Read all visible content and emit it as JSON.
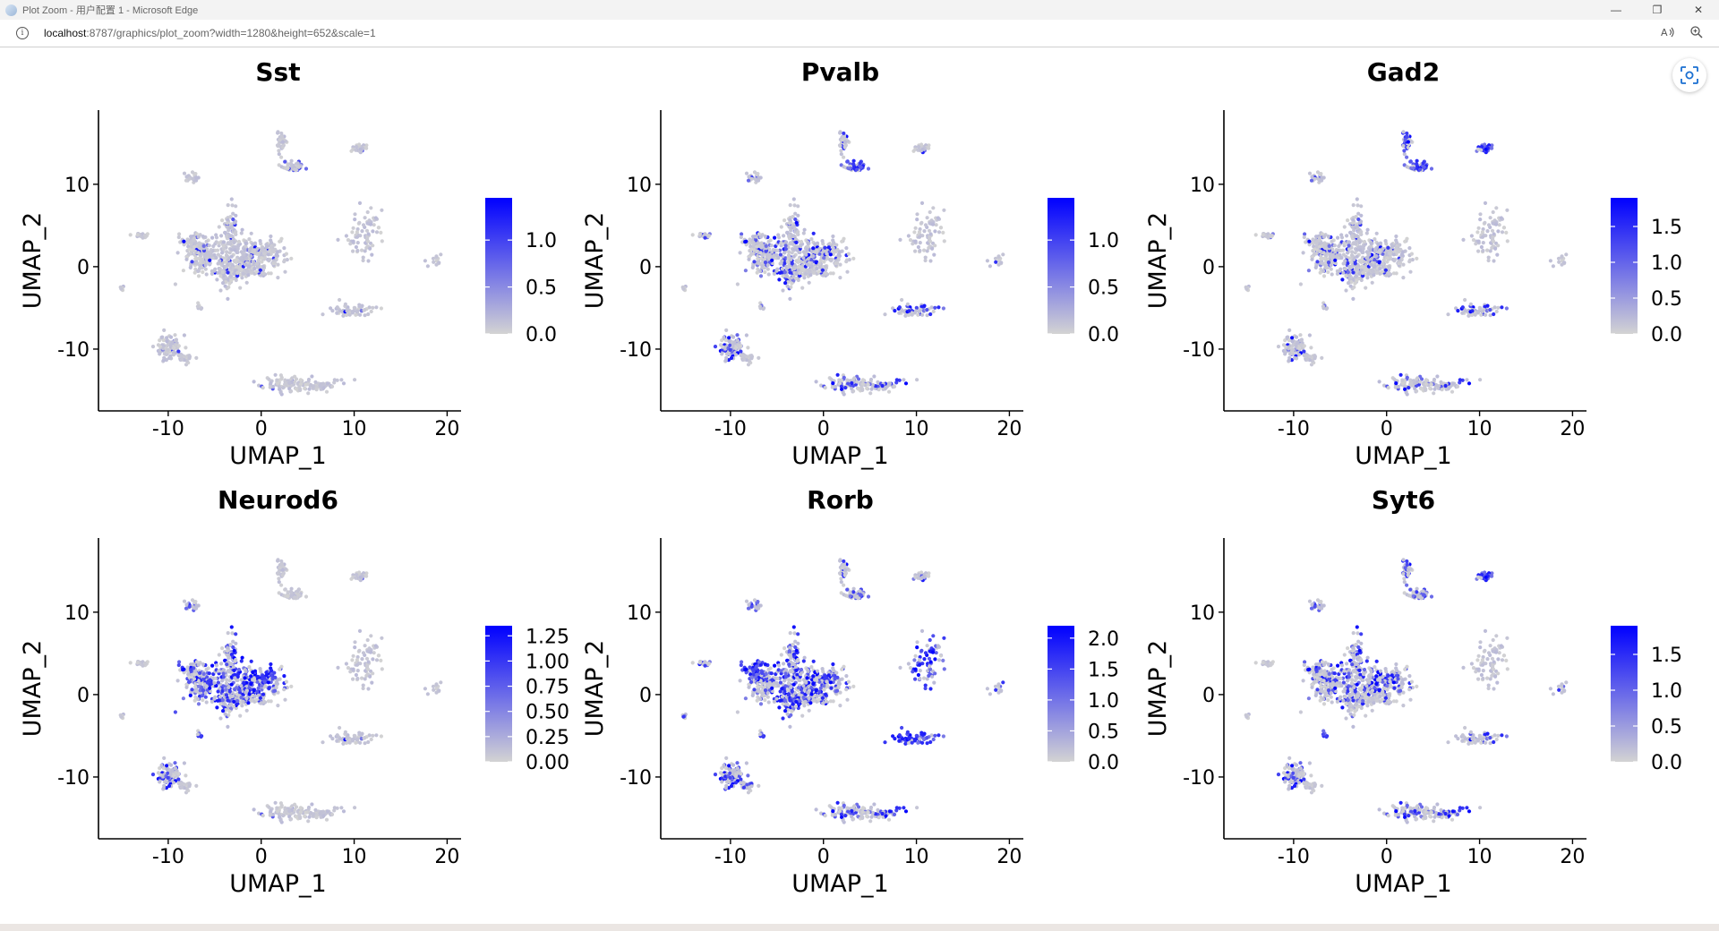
{
  "window": {
    "title": "Plot Zoom - 用户配置 1 - Microsoft Edge",
    "controls": [
      "—",
      "❐",
      "✕"
    ]
  },
  "addressbar": {
    "host": "localhost",
    "path": ":8787/graphics/plot_zoom?width=1280&height=652&scale=1"
  },
  "colors": {
    "low": "#d3d3d3",
    "high": "#0000ff",
    "axis": "#000000"
  },
  "chart_data": [
    {
      "type": "scatter",
      "title": "Sst",
      "xlabel": "UMAP_1",
      "ylabel": "UMAP_2",
      "xlim": [
        -17.5,
        21.5
      ],
      "ylim": [
        -17.5,
        19
      ],
      "xticks": [
        -10,
        0,
        10,
        20
      ],
      "yticks": [
        -10,
        0,
        10
      ],
      "colorbar": {
        "range": [
          0,
          1.45
        ],
        "ticks": [
          0.0,
          0.5,
          1.0
        ],
        "tick_labels": [
          "0.0",
          "0.5",
          "1.0"
        ]
      },
      "cluster_expression": [
        0.05,
        0.05,
        0.05,
        0.05,
        0.05,
        0.02,
        0.02,
        0.02,
        0.02,
        0.02,
        0.02,
        0.3,
        0.02,
        0.02,
        0.02,
        0.02,
        0.02,
        0.02,
        0.02
      ]
    },
    {
      "type": "scatter",
      "title": "Pvalb",
      "xlabel": "UMAP_1",
      "ylabel": "UMAP_2",
      "xlim": [
        -17.5,
        21.5
      ],
      "ylim": [
        -17.5,
        19
      ],
      "xticks": [
        -10,
        0,
        10,
        20
      ],
      "yticks": [
        -10,
        0,
        10
      ],
      "colorbar": {
        "range": [
          0,
          1.45
        ],
        "ticks": [
          0.0,
          0.5,
          1.0
        ],
        "tick_labels": [
          "0.0",
          "0.5",
          "1.0"
        ]
      },
      "cluster_expression": [
        0.25,
        0.15,
        0.35,
        0.15,
        0.2,
        0.02,
        0.3,
        0.02,
        0.3,
        0.15,
        0.2,
        0.75,
        0.1,
        0.02,
        0.35,
        0.2,
        0.15,
        0.25,
        0.1
      ]
    },
    {
      "type": "scatter",
      "title": "Gad2",
      "xlabel": "UMAP_1",
      "ylabel": "UMAP_2",
      "xlim": [
        -17.5,
        21.5
      ],
      "ylim": [
        -17.5,
        19
      ],
      "xticks": [
        -10,
        0,
        10,
        20
      ],
      "yticks": [
        -10,
        0,
        10
      ],
      "colorbar": {
        "range": [
          0,
          1.9
        ],
        "ticks": [
          0.0,
          0.5,
          1.0,
          1.5
        ],
        "tick_labels": [
          "0.0",
          "0.5",
          "1.0",
          "1.5"
        ]
      },
      "cluster_expression": [
        0.15,
        0.1,
        0.1,
        0.1,
        0.1,
        0.02,
        0.1,
        0.02,
        0.15,
        0.05,
        0.6,
        0.75,
        0.9,
        0.02,
        0.3,
        0.15,
        0.1,
        0.15,
        0.05
      ]
    },
    {
      "type": "scatter",
      "title": "Neurod6",
      "xlabel": "UMAP_1",
      "ylabel": "UMAP_2",
      "xlim": [
        -17.5,
        21.5
      ],
      "ylim": [
        -17.5,
        19
      ],
      "xticks": [
        -10,
        0,
        10,
        20
      ],
      "yticks": [
        -10,
        0,
        10
      ],
      "colorbar": {
        "range": [
          0,
          1.35
        ],
        "ticks": [
          0.0,
          0.25,
          0.5,
          0.75,
          1.0,
          1.25
        ],
        "tick_labels": [
          "0.00",
          "0.25",
          "0.50",
          "0.75",
          "1.00",
          "1.25"
        ]
      },
      "cluster_expression": [
        0.5,
        0.45,
        0.35,
        0.4,
        0.6,
        0.3,
        0.3,
        0.02,
        0.6,
        0.3,
        0.02,
        0.02,
        0.02,
        0.02,
        0.02,
        0.02,
        0.02,
        0.02,
        0.02
      ]
    },
    {
      "type": "scatter",
      "title": "Rorb",
      "xlabel": "UMAP_1",
      "ylabel": "UMAP_2",
      "xlim": [
        -17.5,
        21.5
      ],
      "ylim": [
        -17.5,
        19
      ],
      "xticks": [
        -10,
        0,
        10,
        20
      ],
      "yticks": [
        -10,
        0,
        10
      ],
      "colorbar": {
        "range": [
          0,
          2.2
        ],
        "ticks": [
          0.0,
          0.5,
          1.0,
          1.5,
          2.0
        ],
        "tick_labels": [
          "0.0",
          "0.5",
          "1.0",
          "1.5",
          "2.0"
        ]
      },
      "cluster_expression": [
        0.35,
        0.85,
        0.6,
        0.45,
        0.4,
        0.4,
        0.4,
        0.4,
        0.6,
        0.5,
        0.2,
        0.4,
        0.2,
        0.75,
        0.85,
        0.3,
        0.3,
        0.45,
        0.6
      ]
    },
    {
      "type": "scatter",
      "title": "Syt6",
      "xlabel": "UMAP_1",
      "ylabel": "UMAP_2",
      "xlim": [
        -17.5,
        21.5
      ],
      "ylim": [
        -17.5,
        19
      ],
      "xticks": [
        -10,
        0,
        10,
        20
      ],
      "yticks": [
        -10,
        0,
        10
      ],
      "colorbar": {
        "range": [
          0,
          1.9
        ],
        "ticks": [
          0.0,
          0.5,
          1.0,
          1.5
        ],
        "tick_labels": [
          "0.0",
          "0.5",
          "1.0",
          "1.5"
        ]
      },
      "cluster_expression": [
        0.35,
        0.25,
        0.25,
        0.3,
        0.35,
        0.05,
        0.3,
        0.05,
        0.9,
        0.3,
        0.5,
        0.4,
        0.9,
        0.05,
        0.2,
        0.3,
        0.05,
        0.3,
        0.1
      ]
    }
  ]
}
